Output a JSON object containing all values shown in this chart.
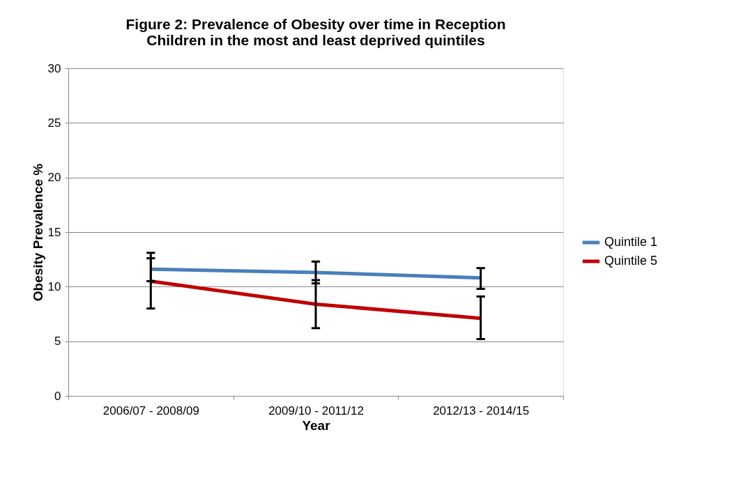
{
  "chart_data": {
    "type": "line",
    "title": "Figure 2: Prevalence of Obesity over time in Reception\nChildren in the most and least deprived quintiles",
    "xlabel": "Year",
    "ylabel": "Obesity Prevalence %",
    "categories": [
      "2006/07 - 2008/09",
      "2009/10 - 2011/12",
      "2012/13 - 2014/15"
    ],
    "series": [
      {
        "name": "Quintile 1",
        "color": "#4a7ebb",
        "values": [
          11.6,
          11.3,
          10.8
        ],
        "errors": [
          [
            10.5,
            13.1
          ],
          [
            10.3,
            12.3
          ],
          [
            9.8,
            11.7
          ]
        ]
      },
      {
        "name": "Quintile 5",
        "color": "#c00000",
        "values": [
          10.5,
          8.4,
          7.1
        ],
        "errors": [
          [
            8.0,
            12.6
          ],
          [
            6.2,
            10.6
          ],
          [
            5.2,
            9.1
          ]
        ]
      }
    ],
    "ylim": [
      0,
      30
    ],
    "yticks": [
      0,
      5,
      10,
      15,
      20,
      25,
      30
    ],
    "grid": "y",
    "legend": "right",
    "marker": "none",
    "line_style": "solid"
  }
}
